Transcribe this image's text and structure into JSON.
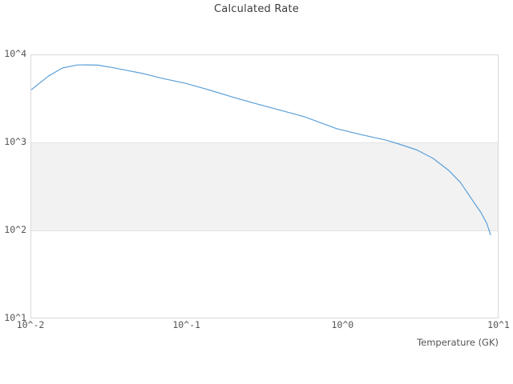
{
  "chart_data": {
    "type": "line",
    "title": "Calculated Rate",
    "xlabel": "Temperature (GK)",
    "ylabel": "",
    "x_scale": "log",
    "y_scale": "log",
    "xlim": [
      0.01,
      10
    ],
    "ylim": [
      10,
      10000
    ],
    "grid": "off",
    "legend": "none",
    "x_ticks": [
      {
        "value": 0.01,
        "label": "10^-2"
      },
      {
        "value": 0.1,
        "label": "10^-1"
      },
      {
        "value": 1,
        "label": "10^0"
      },
      {
        "value": 10,
        "label": "10^1"
      }
    ],
    "y_ticks": [
      {
        "value": 10,
        "label": "10^1"
      },
      {
        "value": 100,
        "label": "10^2"
      },
      {
        "value": 1000,
        "label": "10^3"
      },
      {
        "value": 10000,
        "label": "10^4"
      }
    ],
    "highlight_band": {
      "axis": "y",
      "from": 100,
      "to": 1000,
      "fill": "#f2f2f2",
      "edge": "#e3e3e3"
    },
    "series": [
      {
        "name": "Calculated Rate",
        "color": "#5b9fd8",
        "points": [
          [
            0.01,
            3900
          ],
          [
            0.013,
            5650
          ],
          [
            0.016,
            7000
          ],
          [
            0.02,
            7590
          ],
          [
            0.023,
            7600
          ],
          [
            0.027,
            7560
          ],
          [
            0.033,
            7130
          ],
          [
            0.042,
            6550
          ],
          [
            0.054,
            6000
          ],
          [
            0.068,
            5400
          ],
          [
            0.1,
            4670
          ],
          [
            0.14,
            3940
          ],
          [
            0.2,
            3250
          ],
          [
            0.28,
            2750
          ],
          [
            0.4,
            2320
          ],
          [
            0.57,
            1960
          ],
          [
            0.92,
            1430
          ],
          [
            1.3,
            1230
          ],
          [
            1.9,
            1060
          ],
          [
            2.3,
            960
          ],
          [
            3.0,
            820
          ],
          [
            3.8,
            660
          ],
          [
            4.8,
            480
          ],
          [
            5.7,
            350
          ],
          [
            6.8,
            220
          ],
          [
            7.7,
            160
          ],
          [
            8.4,
            120
          ],
          [
            8.9,
            89
          ]
        ]
      }
    ]
  },
  "colors": {
    "plot_border": "#d9d9d9",
    "title_text": "#3d3d3d",
    "tick_text": "#545454",
    "background": "#ffffff",
    "line": "#5b9fd8",
    "band_fill": "#f2f2f2",
    "band_edge": "#e3e3e3"
  }
}
